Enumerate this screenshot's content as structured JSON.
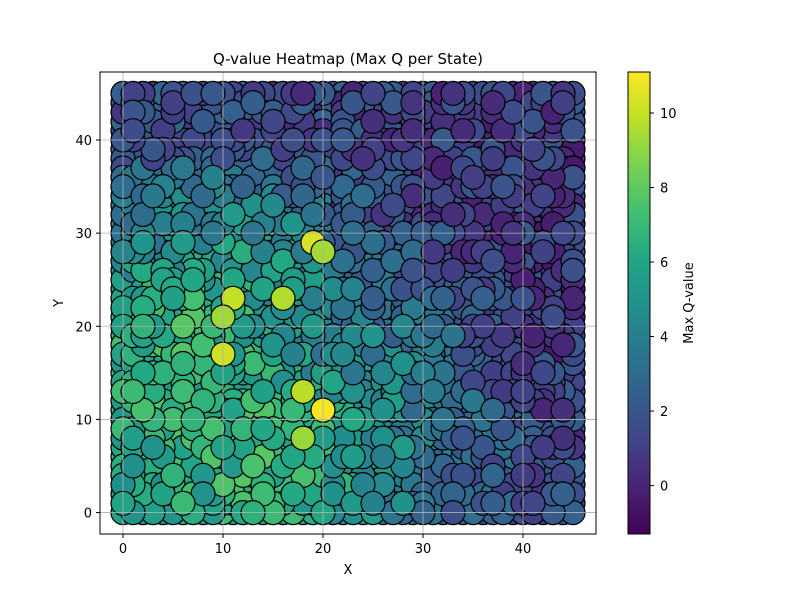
{
  "chart_data": {
    "type": "scatter",
    "title": "Q-value Heatmap (Max Q per State)",
    "xlabel": "X",
    "ylabel": "Y",
    "xlim": [
      -2.3,
      47.3
    ],
    "ylim": [
      -2.3,
      47.3
    ],
    "xticks": [
      0,
      10,
      20,
      30,
      40
    ],
    "yticks": [
      0,
      10,
      20,
      30,
      40
    ],
    "grid": true,
    "grid_step": 1,
    "grid_range": [
      0,
      45
    ],
    "colormap": "viridis",
    "colorbar": {
      "label": "Max Q-value",
      "min": -1.3,
      "max": 11.1,
      "ticks": [
        0,
        2,
        4,
        6,
        8,
        10
      ]
    },
    "marker_edge_color": "#000000",
    "regions": [
      {
        "cx": 7,
        "cy": 12,
        "r": 12,
        "q": 7.2
      },
      {
        "cx": 18,
        "cy": 9,
        "r": 7,
        "q": 8.3
      },
      {
        "cx": 14,
        "cy": 26,
        "r": 7,
        "q": 8.0
      },
      {
        "cx": 8,
        "cy": 22,
        "r": 6,
        "q": 8.6
      },
      {
        "cx": 27,
        "cy": 14,
        "r": 7,
        "q": 6.2
      },
      {
        "cx": 19,
        "cy": 19,
        "r": 5,
        "q": 0.3
      },
      {
        "cx": 29,
        "cy": 27,
        "r": 6,
        "q": 1.5
      },
      {
        "cx": 7,
        "cy": 38,
        "r": 9,
        "q": 1.2
      },
      {
        "cx": 22,
        "cy": 40,
        "r": 10,
        "q": 1.0
      },
      {
        "cx": 40,
        "cy": 15,
        "r": 9,
        "q": 0.1
      },
      {
        "cx": 38,
        "cy": 33,
        "r": 10,
        "q": 0.4
      },
      {
        "cx": 40,
        "cy": 2,
        "r": 8,
        "q": 1.8
      },
      {
        "cx": 30,
        "cy": 4,
        "r": 6,
        "q": 3.4
      },
      {
        "cx": 1,
        "cy": 29,
        "r": 6,
        "q": 4.2
      }
    ],
    "base_q": 2.0,
    "hotspots": [
      {
        "x": 20,
        "y": 11,
        "q": 11.0
      },
      {
        "x": 10,
        "y": 17,
        "q": 10.2
      },
      {
        "x": 11,
        "y": 23,
        "q": 10.0
      },
      {
        "x": 19,
        "y": 29,
        "q": 10.4
      },
      {
        "x": 18,
        "y": 13,
        "q": 9.8
      },
      {
        "x": 16,
        "y": 23,
        "q": 9.6
      },
      {
        "x": 20,
        "y": 28,
        "q": 9.4
      },
      {
        "x": 10,
        "y": 21,
        "q": 9.3
      },
      {
        "x": 18,
        "y": 8,
        "q": 9.2
      }
    ]
  }
}
